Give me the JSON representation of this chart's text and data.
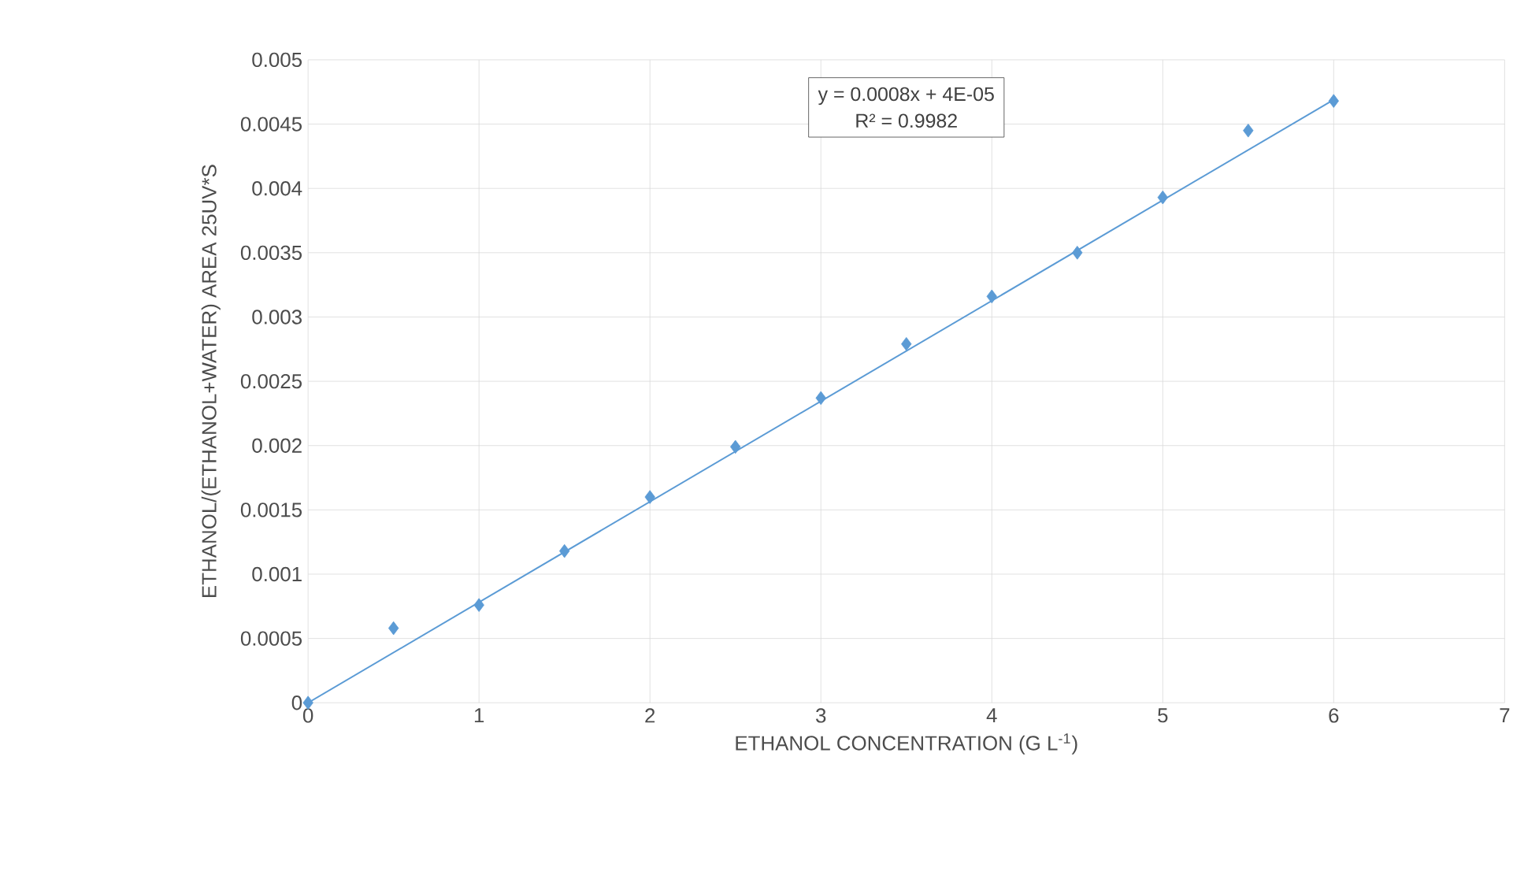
{
  "chart_data": {
    "type": "scatter",
    "xlabel": "ETHANOL CONCENTRATION (G L$^{-1}$)",
    "ylabel": "ETHANOL/(ETHANOL+WATER) AREA 25UV*S",
    "annotations": [
      "y = 0.0008x + 4E-05",
      "R² = 0.9982"
    ],
    "series": [
      {
        "color": "#5b9bd5",
        "marker": "diamond",
        "x": [
          0,
          0.5,
          1,
          1.5,
          2,
          2.5,
          3,
          3.5,
          4,
          4.5,
          5,
          5.5,
          6
        ],
        "values": [
          0,
          0.00058,
          0.00076,
          0.00118,
          0.0016,
          0.00199,
          0.00237,
          0.00279,
          0.00316,
          0.0035,
          0.00393,
          0.00445,
          0.00468
        ]
      },
      {
        "type": "line",
        "color": "#5b9bd5",
        "line_style": "solid",
        "x": [
          0,
          6
        ],
        "values": [
          0,
          0.00469
        ]
      }
    ],
    "xlim": [
      0,
      7
    ],
    "xticks": [
      0,
      1,
      2,
      3,
      4,
      5,
      6,
      7
    ],
    "ylim": [
      0,
      0.005
    ],
    "yticks": [
      0,
      0.0005,
      0.001,
      0.0015,
      0.002,
      0.0025,
      0.003,
      0.0035,
      0.004,
      0.0045,
      0.005
    ],
    "grid": true
  }
}
